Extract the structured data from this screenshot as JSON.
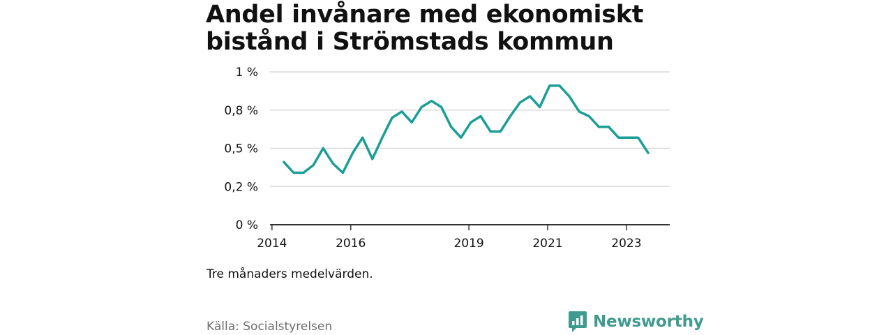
{
  "chart_data": {
    "type": "line",
    "title": "Andel invånare med ekonomiskt bistånd i Strömstads kommun",
    "subtitle": "Tre månaders medelvärden.",
    "xlabel": "",
    "ylabel": "",
    "x_ticks": [
      {
        "value": 2014,
        "label": "2014"
      },
      {
        "value": 2016,
        "label": "2016"
      },
      {
        "value": 2019,
        "label": "2019"
      },
      {
        "value": 2021,
        "label": "2021"
      },
      {
        "value": 2023,
        "label": "2023"
      }
    ],
    "y_ticks": [
      {
        "value": 0,
        "label": "0 %"
      },
      {
        "value": 0.25,
        "label": "0,2 %"
      },
      {
        "value": 0.5,
        "label": "0,5 %"
      },
      {
        "value": 0.75,
        "label": "0,8 %"
      },
      {
        "value": 1.0,
        "label": "1 %"
      }
    ],
    "xlim": [
      2013.95,
      2024.1
    ],
    "ylim": [
      0,
      1.0
    ],
    "grid": true,
    "line_color": "#1a9e96",
    "series": [
      {
        "name": "",
        "points": [
          [
            2014.3,
            0.41
          ],
          [
            2014.55,
            0.34
          ],
          [
            2014.8,
            0.34
          ],
          [
            2015.05,
            0.39
          ],
          [
            2015.3,
            0.5
          ],
          [
            2015.55,
            0.4
          ],
          [
            2015.8,
            0.34
          ],
          [
            2016.05,
            0.47
          ],
          [
            2016.3,
            0.57
          ],
          [
            2016.55,
            0.43
          ],
          [
            2016.8,
            0.57
          ],
          [
            2017.05,
            0.7
          ],
          [
            2017.3,
            0.74
          ],
          [
            2017.55,
            0.67
          ],
          [
            2017.8,
            0.77
          ],
          [
            2018.05,
            0.81
          ],
          [
            2018.3,
            0.77
          ],
          [
            2018.55,
            0.64
          ],
          [
            2018.8,
            0.57
          ],
          [
            2019.05,
            0.67
          ],
          [
            2019.3,
            0.71
          ],
          [
            2019.55,
            0.61
          ],
          [
            2019.8,
            0.61
          ],
          [
            2020.05,
            0.71
          ],
          [
            2020.3,
            0.8
          ],
          [
            2020.55,
            0.84
          ],
          [
            2020.8,
            0.77
          ],
          [
            2021.05,
            0.91
          ],
          [
            2021.3,
            0.91
          ],
          [
            2021.55,
            0.84
          ],
          [
            2021.8,
            0.74
          ],
          [
            2022.05,
            0.71
          ],
          [
            2022.3,
            0.64
          ],
          [
            2022.55,
            0.64
          ],
          [
            2022.8,
            0.57
          ],
          [
            2023.05,
            0.57
          ],
          [
            2023.3,
            0.57
          ],
          [
            2023.55,
            0.47
          ]
        ]
      }
    ]
  },
  "footer": {
    "source": "Källa: Socialstyrelsen",
    "brand": "Newsworthy"
  },
  "colors": {
    "brand": "#3f9a8f",
    "grid": "#d9d9d9",
    "axis": "#333333"
  }
}
